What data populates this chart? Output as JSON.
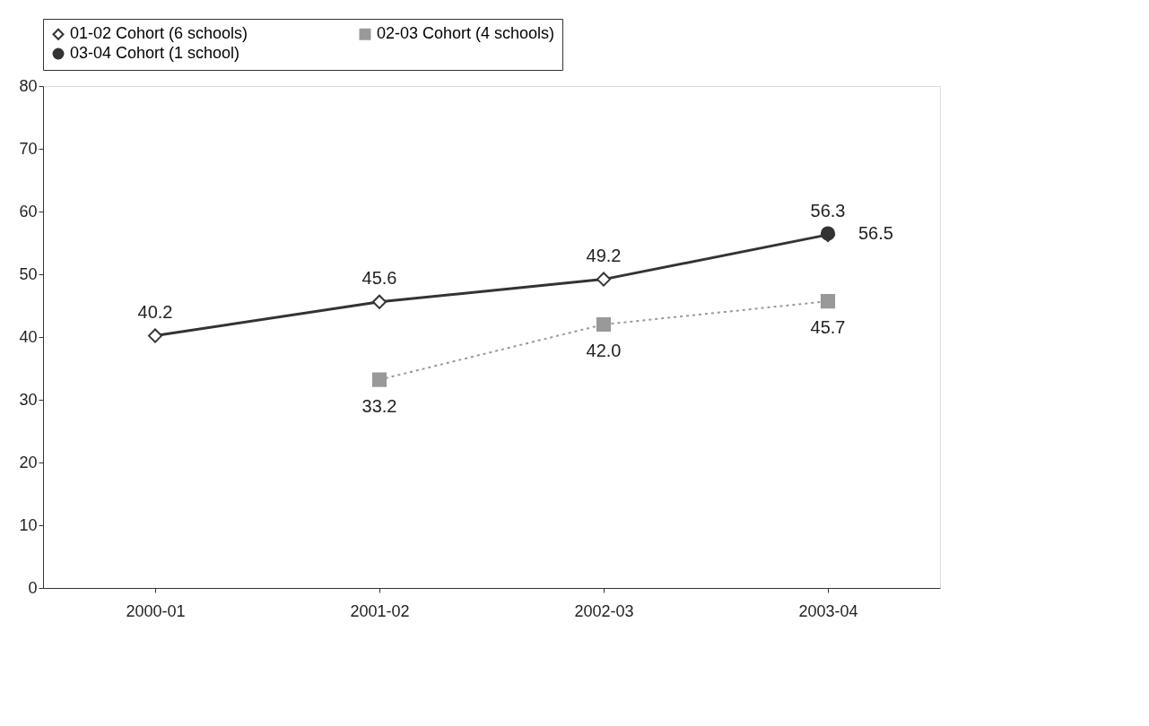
{
  "chart_data": {
    "type": "line",
    "categories": [
      "2000-01",
      "2001-02",
      "2002-03",
      "2003-04"
    ],
    "series": [
      {
        "name": "01-02 Cohort (6 schools)",
        "color": "#333333",
        "marker": "diamond",
        "line_style": "solid",
        "values": [
          40.2,
          45.6,
          49.2,
          56.3
        ],
        "value_labels": [
          "40.2",
          "45.6",
          "49.2",
          "56.3"
        ]
      },
      {
        "name": "02-03 Cohort (4 schools)",
        "color": "#999999",
        "marker": "square",
        "line_style": "dotted",
        "values": [
          null,
          33.2,
          42.0,
          45.7
        ],
        "value_labels": [
          null,
          "33.2",
          "42.0",
          "45.7"
        ]
      },
      {
        "name": "03-04 Cohort (1 school)",
        "color": "#333333",
        "marker": "circle",
        "line_style": "solid",
        "values": [
          null,
          null,
          null,
          56.5
        ],
        "value_labels": [
          null,
          null,
          null,
          "56.5"
        ]
      }
    ],
    "ylim": [
      0,
      80
    ],
    "yticks": [
      0,
      10,
      20,
      30,
      40,
      50,
      60,
      70,
      80
    ],
    "grid": false,
    "legend": "top"
  }
}
